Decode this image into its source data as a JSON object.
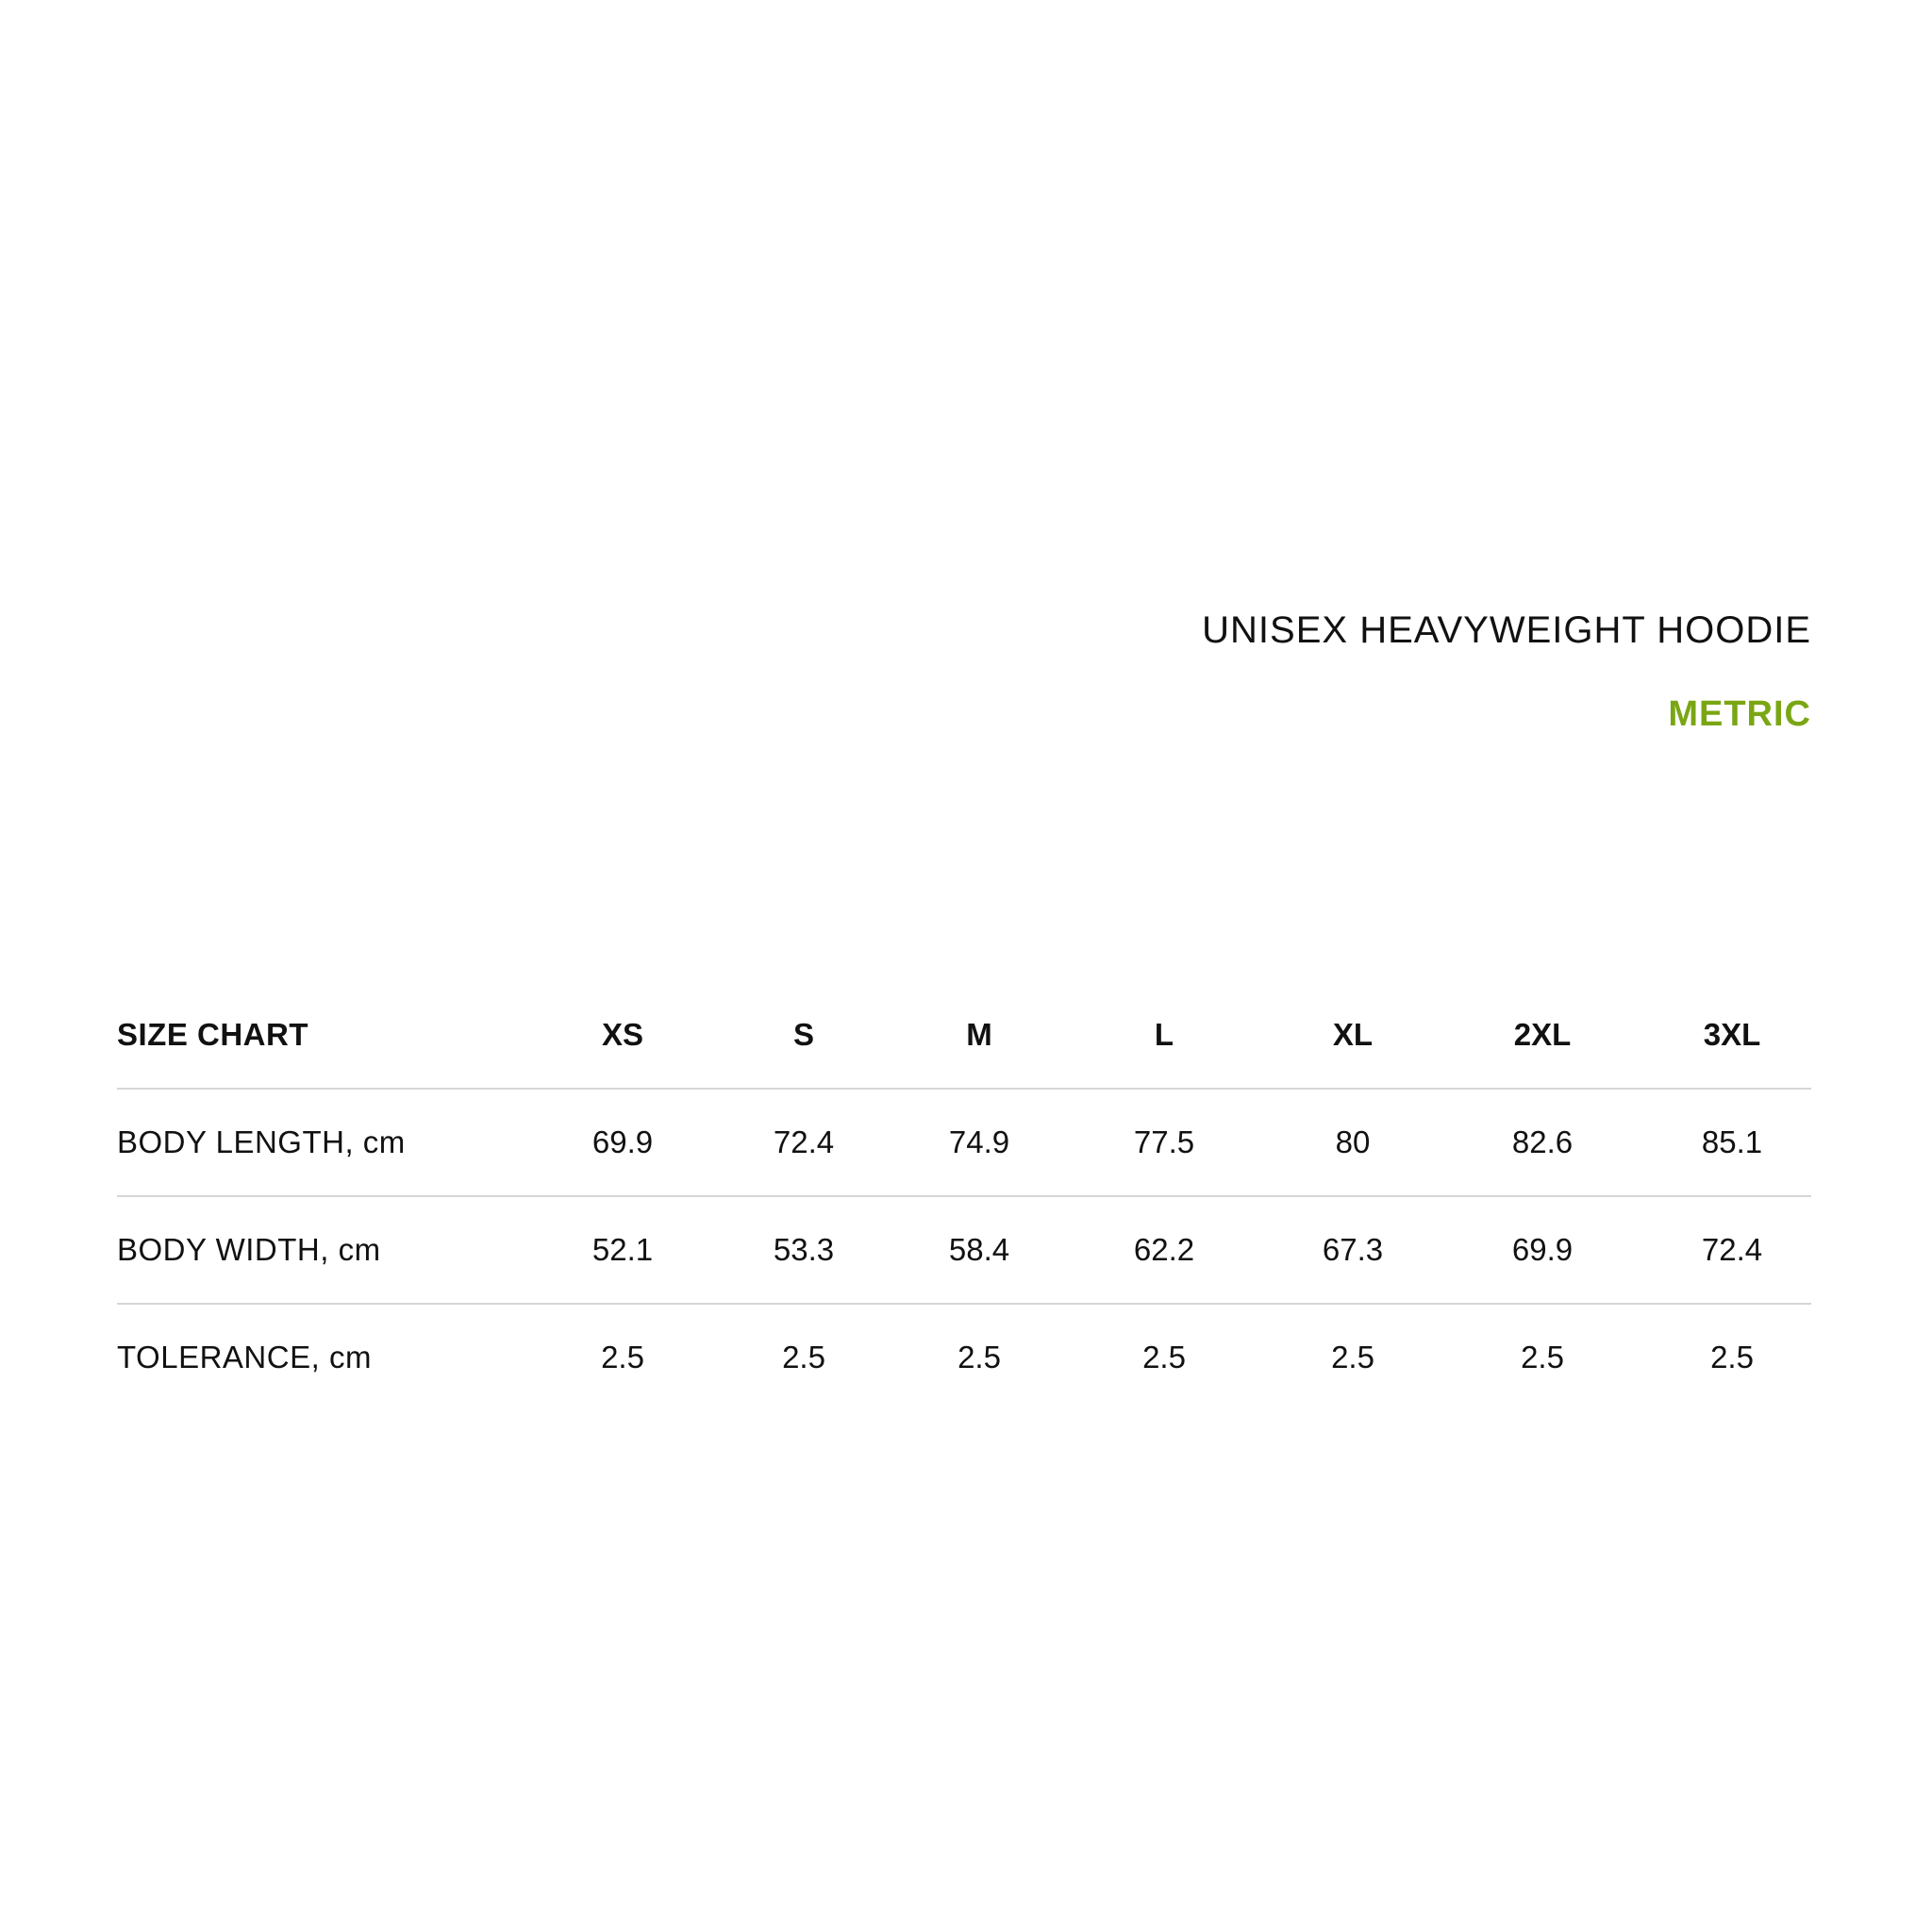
{
  "title": "UNISEX HEAVYWEIGHT HOODIE",
  "unit_label": "METRIC",
  "accent_color": "#7aa614",
  "table": {
    "header_label": "SIZE CHART",
    "sizes": [
      "XS",
      "S",
      "M",
      "L",
      "XL",
      "2XL",
      "3XL"
    ],
    "rows": [
      {
        "label": "BODY LENGTH, cm",
        "values": [
          "69.9",
          "72.4",
          "74.9",
          "77.5",
          "80",
          "82.6",
          "85.1"
        ]
      },
      {
        "label": "BODY WIDTH, cm",
        "values": [
          "52.1",
          "53.3",
          "58.4",
          "62.2",
          "67.3",
          "69.9",
          "72.4"
        ]
      },
      {
        "label": "TOLERANCE, cm",
        "values": [
          "2.5",
          "2.5",
          "2.5",
          "2.5",
          "2.5",
          "2.5",
          "2.5"
        ]
      }
    ]
  }
}
